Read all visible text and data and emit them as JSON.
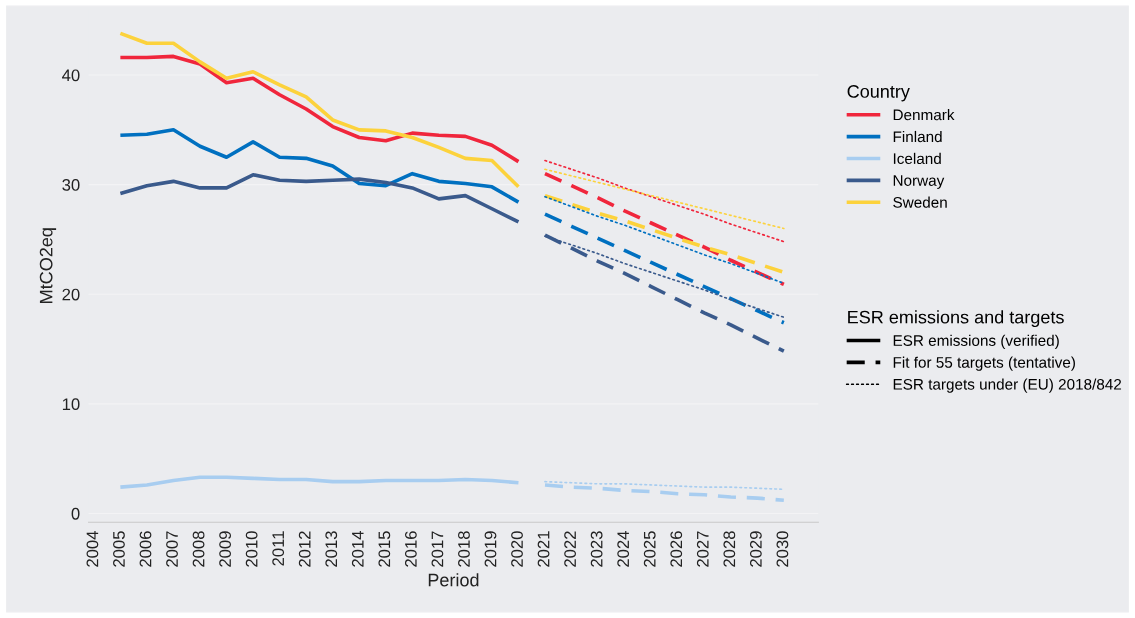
{
  "chart_data": {
    "type": "line",
    "xlabel": "Period",
    "ylabel": "MtCO2eq",
    "legend_title": [
      "Country",
      "ESR emissions and targets"
    ],
    "legend": "right",
    "grid": "y",
    "marker": "none",
    "xlim": [
      2003.8,
      2031.3
    ],
    "xticks": [
      2004,
      2005,
      2006,
      2007,
      2008,
      2009,
      2010,
      2011,
      2012,
      2013,
      2014,
      2015,
      2016,
      2017,
      2018,
      2019,
      2020,
      2021,
      2022,
      2023,
      2024,
      2025,
      2026,
      2027,
      2028,
      2029,
      2030
    ],
    "ylim": [
      -0.8,
      46
    ],
    "yticks": [
      0,
      10,
      20,
      30,
      40
    ],
    "x": [
      2005,
      2006,
      2007,
      2008,
      2009,
      2010,
      2011,
      2012,
      2013,
      2014,
      2015,
      2016,
      2017,
      2018,
      2019,
      2020,
      2021,
      2022,
      2023,
      2024,
      2025,
      2026,
      2027,
      2028,
      2029,
      2030
    ],
    "series": [
      {
        "name": "Denmark",
        "color": "#f0263c",
        "line_style": "solid",
        "values": [
          41.6,
          41.6,
          41.7,
          41.0,
          39.3,
          39.7,
          38.2,
          36.9,
          35.3,
          34.3,
          34.0,
          34.7,
          34.5,
          34.4,
          33.6,
          32.1,
          null,
          null,
          null,
          null,
          null,
          null,
          null,
          null,
          null,
          null
        ]
      },
      {
        "name": "Finland",
        "color": "#0070c0",
        "line_style": "solid",
        "values": [
          34.5,
          34.6,
          35.0,
          33.5,
          32.5,
          33.9,
          32.5,
          32.4,
          31.7,
          30.1,
          29.9,
          31.0,
          30.3,
          30.1,
          29.8,
          28.4,
          null,
          null,
          null,
          null,
          null,
          null,
          null,
          null,
          null,
          null
        ]
      },
      {
        "name": "Iceland",
        "color": "#a8cdf0",
        "line_style": "solid",
        "values": [
          2.4,
          2.6,
          3.0,
          3.3,
          3.3,
          3.2,
          3.1,
          3.1,
          2.9,
          2.9,
          3.0,
          3.0,
          3.0,
          3.1,
          3.0,
          2.8,
          null,
          null,
          null,
          null,
          null,
          null,
          null,
          null,
          null,
          null
        ]
      },
      {
        "name": "Norway",
        "color": "#3a5a8c",
        "line_style": "solid",
        "values": [
          29.2,
          29.9,
          30.3,
          29.7,
          29.7,
          30.9,
          30.4,
          30.3,
          30.4,
          30.5,
          30.2,
          29.7,
          28.7,
          29.0,
          27.8,
          26.6,
          null,
          null,
          null,
          null,
          null,
          null,
          null,
          null,
          null,
          null
        ]
      },
      {
        "name": "Sweden",
        "color": "#fcd23c",
        "line_style": "solid",
        "values": [
          43.8,
          42.9,
          42.9,
          41.2,
          39.7,
          40.3,
          39.1,
          38.0,
          35.9,
          35.0,
          34.9,
          34.3,
          33.4,
          32.4,
          32.2,
          29.8,
          null,
          null,
          null,
          null,
          null,
          null,
          null,
          null,
          null,
          null
        ]
      },
      {
        "color": "#f0263c",
        "line_style": "dashed",
        "values": [
          null,
          null,
          null,
          null,
          null,
          null,
          null,
          null,
          null,
          null,
          null,
          null,
          null,
          null,
          null,
          null,
          31.0,
          29.9,
          28.8,
          27.6,
          26.5,
          25.4,
          24.3,
          23.1,
          22.0,
          20.9
        ]
      },
      {
        "color": "#0070c0",
        "line_style": "dashed",
        "values": [
          null,
          null,
          null,
          null,
          null,
          null,
          null,
          null,
          null,
          null,
          null,
          null,
          null,
          null,
          null,
          null,
          27.3,
          26.2,
          25.1,
          24.0,
          22.9,
          21.8,
          20.7,
          19.6,
          18.5,
          17.4
        ]
      },
      {
        "color": "#a8cdf0",
        "line_style": "dashed",
        "values": [
          null,
          null,
          null,
          null,
          null,
          null,
          null,
          null,
          null,
          null,
          null,
          null,
          null,
          null,
          null,
          null,
          2.6,
          2.4,
          2.3,
          2.1,
          2.0,
          1.8,
          1.7,
          1.5,
          1.4,
          1.2
        ]
      },
      {
        "color": "#3a5a8c",
        "line_style": "dashed",
        "values": [
          null,
          null,
          null,
          null,
          null,
          null,
          null,
          null,
          null,
          null,
          null,
          null,
          null,
          null,
          null,
          null,
          25.4,
          24.2,
          23.0,
          21.9,
          20.7,
          19.5,
          18.3,
          17.2,
          16.0,
          14.8
        ]
      },
      {
        "color": "#fcd23c",
        "line_style": "dashed",
        "values": [
          null,
          null,
          null,
          null,
          null,
          null,
          null,
          null,
          null,
          null,
          null,
          null,
          null,
          null,
          null,
          null,
          29.0,
          28.2,
          27.4,
          26.7,
          25.9,
          25.1,
          24.3,
          23.6,
          22.8,
          22.0
        ]
      },
      {
        "color": "#f0263c",
        "line_style": "dotted",
        "values": [
          null,
          null,
          null,
          null,
          null,
          null,
          null,
          null,
          null,
          null,
          null,
          null,
          null,
          null,
          null,
          null,
          32.2,
          31.4,
          30.6,
          29.7,
          28.9,
          28.1,
          27.3,
          26.4,
          25.6,
          24.8
        ]
      },
      {
        "color": "#0070c0",
        "line_style": "dotted",
        "values": [
          null,
          null,
          null,
          null,
          null,
          null,
          null,
          null,
          null,
          null,
          null,
          null,
          null,
          null,
          null,
          null,
          28.9,
          28.0,
          27.1,
          26.3,
          25.4,
          24.5,
          23.6,
          22.8,
          21.9,
          21.0
        ]
      },
      {
        "color": "#a8cdf0",
        "line_style": "dotted",
        "values": [
          null,
          null,
          null,
          null,
          null,
          null,
          null,
          null,
          null,
          null,
          null,
          null,
          null,
          null,
          null,
          null,
          2.9,
          2.8,
          2.7,
          2.7,
          2.6,
          2.5,
          2.4,
          2.4,
          2.3,
          2.2
        ]
      },
      {
        "color": "#3a5a8c",
        "line_style": "dotted",
        "values": [
          null,
          null,
          null,
          null,
          null,
          null,
          null,
          null,
          null,
          null,
          null,
          null,
          null,
          null,
          null,
          null,
          25.3,
          24.5,
          23.7,
          22.8,
          22.0,
          21.2,
          20.4,
          19.5,
          18.7,
          17.9
        ]
      },
      {
        "color": "#fcd23c",
        "line_style": "dotted",
        "values": [
          null,
          null,
          null,
          null,
          null,
          null,
          null,
          null,
          null,
          null,
          null,
          null,
          null,
          null,
          null,
          null,
          31.4,
          30.8,
          30.2,
          29.6,
          29.0,
          28.4,
          27.8,
          27.2,
          26.6,
          26.0
        ]
      },
      {
        "name": "ESR emissions (verified)",
        "color": "#000000",
        "line_style": "solid",
        "values": [
          null,
          null,
          null,
          null,
          null,
          null,
          null,
          null,
          null,
          null,
          null,
          null,
          null,
          null,
          null,
          null,
          null,
          null,
          null,
          null,
          null,
          null,
          null,
          null,
          null,
          null
        ]
      },
      {
        "name": "Fit for 55 targets (tentative)",
        "color": "#000000",
        "line_style": "dashed",
        "values": [
          null,
          null,
          null,
          null,
          null,
          null,
          null,
          null,
          null,
          null,
          null,
          null,
          null,
          null,
          null,
          null,
          null,
          null,
          null,
          null,
          null,
          null,
          null,
          null,
          null,
          null
        ]
      },
      {
        "name": "ESR targets under (EU) 2018/842",
        "color": "#000000",
        "line_style": "dotted",
        "values": [
          null,
          null,
          null,
          null,
          null,
          null,
          null,
          null,
          null,
          null,
          null,
          null,
          null,
          null,
          null,
          null,
          null,
          null,
          null,
          null,
          null,
          null,
          null,
          null,
          null,
          null
        ]
      }
    ]
  }
}
